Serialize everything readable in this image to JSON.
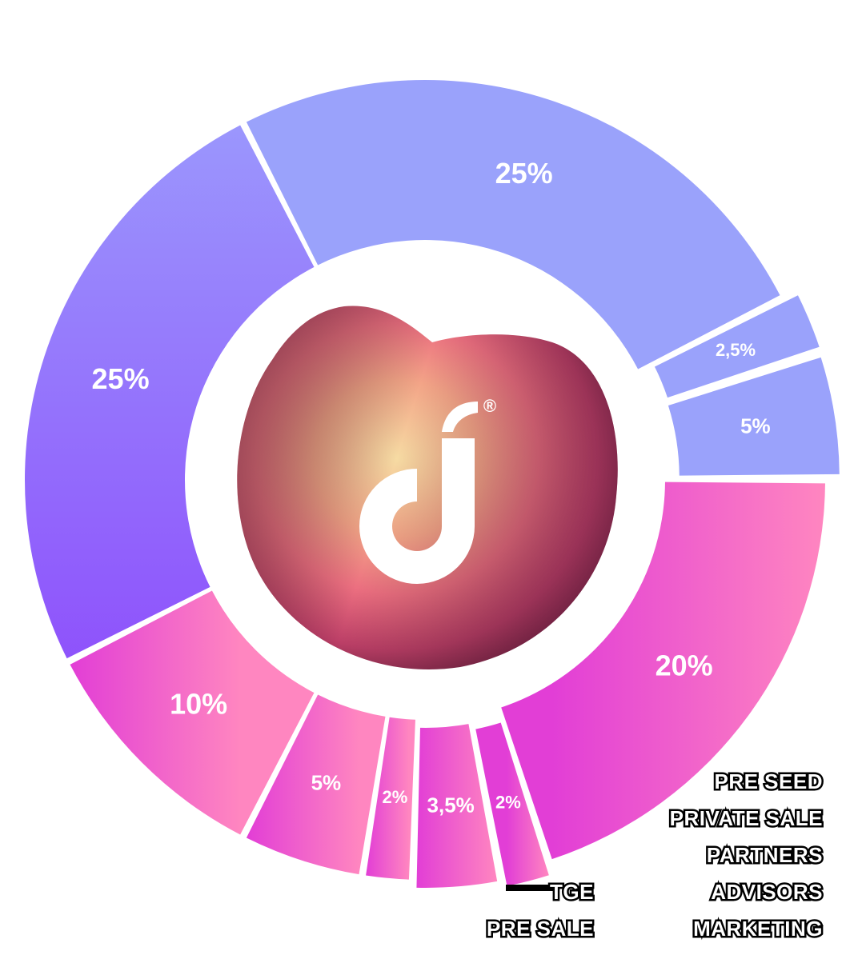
{
  "chart_data": {
    "type": "pie",
    "variant": "donut",
    "title": "",
    "slices": [
      {
        "label": "25%",
        "value": 25,
        "color_start": "#9aa2fb",
        "color_end": "#9aa2fb"
      },
      {
        "label": "2,5%",
        "value": 2.5,
        "color_start": "#9aa2fb",
        "color_end": "#9aa2fb"
      },
      {
        "label": "5%",
        "value": 5,
        "color_start": "#9aa2fb",
        "color_end": "#9aa2fb"
      },
      {
        "label": "20%",
        "value": 20,
        "color_start": "#e23ed6",
        "color_end": "#ff86c0"
      },
      {
        "label": "2%",
        "value": 2,
        "color_start": "#e23ed6",
        "color_end": "#ff86c0"
      },
      {
        "label": "3,5%",
        "value": 3.5,
        "color_start": "#e23ed6",
        "color_end": "#ff86c0"
      },
      {
        "label": "2%",
        "value": 2,
        "color_start": "#e23ed6",
        "color_end": "#ff86c0"
      },
      {
        "label": "5%",
        "value": 5,
        "color_start": "#e23ed6",
        "color_end": "#ff86c0"
      },
      {
        "label": "10%",
        "value": 10,
        "color_start": "#e23ed6",
        "color_end": "#ff86c0"
      },
      {
        "label": "25%",
        "value": 25,
        "color_start": "#9c9cfd",
        "color_end": "#8c46fb"
      }
    ],
    "legend": {
      "placement": "bottom-right",
      "entries_right": [
        "PRE SEED",
        "PRIVATE SALE",
        "PARTNERS",
        "ADVISORS",
        "MARKETING"
      ],
      "entries_left": [
        "TGE",
        "PRE SALE"
      ]
    },
    "center_logo": {
      "glyph": "d",
      "trademark": "®",
      "colors": [
        "#f3d49e",
        "#f08a8a",
        "#c9486a",
        "#8a2a4a"
      ]
    }
  }
}
